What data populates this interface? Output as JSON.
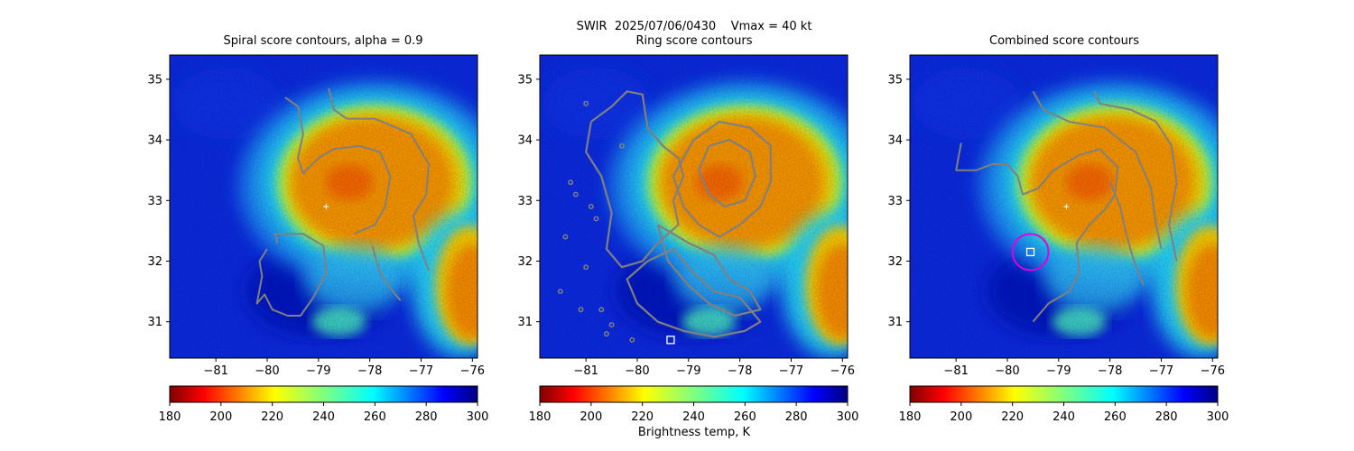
{
  "figure": {
    "suptitle": "SWIR  2025/07/06/0430    Vmax = 40 kt",
    "colorbar_label": "Brightness temp, K"
  },
  "chart_data": [
    {
      "type": "heatmap",
      "title": "Spiral score contours, alpha =  0.9",
      "xlim": [
        -81.9,
        -75.9
      ],
      "ylim": [
        30.4,
        35.4
      ],
      "xticks": [
        -81,
        -80,
        -79,
        -78,
        -77,
        -76
      ],
      "yticks": [
        31,
        32,
        33,
        34,
        35
      ],
      "colormap": "jet_r",
      "clim": [
        180,
        300
      ],
      "cbar_ticks": [
        180,
        200,
        220,
        240,
        260,
        280,
        300
      ],
      "center_marker": {
        "x": -78.85,
        "y": 32.9
      },
      "contours": [
        {
          "name": "",
          "points": [
            [
              -79.65,
              34.7
            ],
            [
              -79.4,
              34.55
            ],
            [
              -79.3,
              34.1
            ],
            [
              -79.4,
              33.7
            ],
            [
              -79.3,
              33.45
            ],
            [
              -79.0,
              33.7
            ],
            [
              -78.7,
              33.85
            ],
            [
              -78.2,
              33.9
            ],
            [
              -77.8,
              33.8
            ],
            [
              -77.6,
              33.4
            ],
            [
              -77.7,
              32.9
            ],
            [
              -77.9,
              32.6
            ],
            [
              -78.3,
              32.45
            ]
          ]
        },
        {
          "name": "",
          "points": [
            [
              -78.8,
              34.85
            ],
            [
              -78.7,
              34.5
            ],
            [
              -78.45,
              34.35
            ],
            [
              -77.9,
              34.35
            ],
            [
              -77.2,
              34.1
            ],
            [
              -76.85,
              33.6
            ],
            [
              -76.9,
              33.1
            ],
            [
              -77.15,
              32.75
            ],
            [
              -77.05,
              32.3
            ],
            [
              -76.85,
              31.85
            ]
          ]
        },
        {
          "name": "",
          "points": [
            [
              -79.8,
              32.3
            ],
            [
              -79.85,
              32.45
            ],
            [
              -79.3,
              32.45
            ],
            [
              -78.9,
              32.25
            ],
            [
              -78.85,
              31.8
            ],
            [
              -79.1,
              31.4
            ],
            [
              -79.35,
              31.1
            ],
            [
              -79.6,
              31.1
            ],
            [
              -79.9,
              31.2
            ],
            [
              -80.05,
              31.45
            ],
            [
              -80.2,
              31.3
            ],
            [
              -80.1,
              31.75
            ],
            [
              -80.15,
              32.0
            ],
            [
              -80.0,
              32.2
            ]
          ]
        },
        {
          "name": "",
          "points": [
            [
              -77.95,
              32.25
            ],
            [
              -77.8,
              31.8
            ],
            [
              -77.55,
              31.5
            ],
            [
              -77.4,
              31.35
            ]
          ]
        }
      ]
    },
    {
      "type": "heatmap",
      "title": "Ring score contours",
      "xlim": [
        -81.9,
        -75.9
      ],
      "ylim": [
        30.4,
        35.4
      ],
      "xticks": [
        -81,
        -80,
        -79,
        -78,
        -77,
        -76
      ],
      "yticks": [
        31,
        32,
        33,
        34,
        35
      ],
      "colormap": "jet_r",
      "clim": [
        180,
        300
      ],
      "cbar_ticks": [
        180,
        200,
        220,
        240,
        260,
        280,
        300
      ],
      "square_marker": {
        "x": -79.35,
        "y": 30.7
      },
      "contours": [
        {
          "name": "",
          "points": [
            [
              -80.9,
              34.3
            ],
            [
              -80.5,
              34.55
            ],
            [
              -80.2,
              34.8
            ],
            [
              -79.9,
              34.75
            ],
            [
              -79.8,
              34.2
            ],
            [
              -79.5,
              33.9
            ],
            [
              -79.2,
              33.7
            ],
            [
              -79.1,
              33.4
            ],
            [
              -79.3,
              33.0
            ],
            [
              -79.2,
              32.6
            ],
            [
              -79.6,
              32.3
            ],
            [
              -79.9,
              32.0
            ],
            [
              -80.3,
              31.9
            ],
            [
              -80.6,
              32.2
            ],
            [
              -80.5,
              32.8
            ],
            [
              -80.7,
              33.4
            ],
            [
              -81.0,
              33.8
            ],
            [
              -80.9,
              34.3
            ]
          ]
        },
        {
          "name": "",
          "points": [
            [
              -79.3,
              33.4
            ],
            [
              -78.9,
              34.0
            ],
            [
              -78.4,
              34.3
            ],
            [
              -77.8,
              34.2
            ],
            [
              -77.4,
              33.9
            ],
            [
              -77.4,
              33.3
            ],
            [
              -77.6,
              32.9
            ],
            [
              -78.0,
              32.6
            ],
            [
              -78.4,
              32.4
            ],
            [
              -78.8,
              32.6
            ],
            [
              -79.1,
              32.9
            ],
            [
              -79.3,
              33.4
            ]
          ]
        },
        {
          "name": "",
          "points": [
            [
              -78.6,
              33.9
            ],
            [
              -78.2,
              34.0
            ],
            [
              -77.8,
              33.8
            ],
            [
              -77.7,
              33.4
            ],
            [
              -77.9,
              33.0
            ],
            [
              -78.3,
              32.9
            ],
            [
              -78.6,
              33.1
            ],
            [
              -78.8,
              33.5
            ],
            [
              -78.6,
              33.9
            ]
          ]
        },
        {
          "name": "",
          "points": [
            [
              -79.8,
              32.0
            ],
            [
              -79.3,
              32.2
            ],
            [
              -78.9,
              31.8
            ],
            [
              -78.5,
              31.5
            ],
            [
              -78.0,
              31.4
            ],
            [
              -77.6,
              31.0
            ],
            [
              -77.9,
              30.85
            ],
            [
              -78.5,
              30.75
            ],
            [
              -79.1,
              30.85
            ],
            [
              -79.6,
              31.0
            ],
            [
              -80.0,
              31.3
            ],
            [
              -80.2,
              31.7
            ],
            [
              -79.8,
              32.0
            ]
          ]
        },
        {
          "name": "",
          "points": [
            [
              -79.6,
              32.6
            ],
            [
              -79.0,
              32.3
            ],
            [
              -78.5,
              32.1
            ],
            [
              -78.2,
              31.7
            ],
            [
              -77.8,
              31.5
            ],
            [
              -77.6,
              31.2
            ],
            [
              -78.1,
              31.1
            ],
            [
              -78.6,
              31.3
            ],
            [
              -79.0,
              31.6
            ],
            [
              -79.4,
              32.0
            ],
            [
              -79.6,
              32.6
            ]
          ]
        }
      ],
      "speckles": [
        [
          -81.3,
          33.3
        ],
        [
          -81.4,
          32.4
        ],
        [
          -81.0,
          31.9
        ],
        [
          -80.7,
          31.2
        ],
        [
          -80.5,
          30.95
        ],
        [
          -81.2,
          33.1
        ],
        [
          -80.8,
          32.7
        ],
        [
          -80.3,
          33.9
        ],
        [
          -81.5,
          31.5
        ],
        [
          -80.9,
          32.9
        ],
        [
          -81.1,
          31.2
        ],
        [
          -80.6,
          30.8
        ],
        [
          -81.0,
          34.6
        ],
        [
          -80.1,
          30.7
        ]
      ]
    },
    {
      "type": "heatmap",
      "title": "Combined score contours",
      "xlim": [
        -81.9,
        -75.9
      ],
      "ylim": [
        30.4,
        35.4
      ],
      "xticks": [
        -81,
        -80,
        -79,
        -78,
        -77,
        -76
      ],
      "yticks": [
        31,
        32,
        33,
        34,
        35
      ],
      "colormap": "jet_r",
      "clim": [
        180,
        300
      ],
      "cbar_ticks": [
        180,
        200,
        220,
        240,
        260,
        280,
        300
      ],
      "center_marker": {
        "x": -78.85,
        "y": 32.9
      },
      "ring_marker": {
        "x": -79.55,
        "y": 32.15
      },
      "square_marker": {
        "x": -79.55,
        "y": 32.15
      },
      "contours": [
        {
          "name": "",
          "points": [
            [
              -80.9,
              33.95
            ],
            [
              -81.0,
              33.5
            ],
            [
              -80.6,
              33.5
            ],
            [
              -80.3,
              33.6
            ],
            [
              -80.0,
              33.6
            ],
            [
              -79.8,
              33.4
            ],
            [
              -79.7,
              33.1
            ],
            [
              -79.4,
              33.2
            ],
            [
              -79.1,
              33.5
            ],
            [
              -78.6,
              33.75
            ],
            [
              -78.2,
              33.85
            ],
            [
              -77.85,
              33.55
            ],
            [
              -77.9,
              33.1
            ],
            [
              -78.1,
              32.85
            ],
            [
              -78.4,
              32.6
            ],
            [
              -78.65,
              32.3
            ],
            [
              -78.6,
              31.8
            ],
            [
              -78.8,
              31.5
            ],
            [
              -79.2,
              31.3
            ],
            [
              -79.5,
              31.0
            ]
          ]
        },
        {
          "name": "",
          "points": [
            [
              -79.5,
              34.8
            ],
            [
              -79.3,
              34.5
            ],
            [
              -78.8,
              34.3
            ],
            [
              -78.1,
              34.2
            ],
            [
              -77.5,
              33.8
            ],
            [
              -77.2,
              33.2
            ],
            [
              -77.1,
              32.6
            ],
            [
              -77.0,
              32.2
            ]
          ]
        },
        {
          "name": "",
          "points": [
            [
              -78.3,
              34.8
            ],
            [
              -78.2,
              34.6
            ],
            [
              -77.6,
              34.5
            ],
            [
              -77.1,
              34.3
            ],
            [
              -76.8,
              33.9
            ],
            [
              -76.7,
              33.3
            ],
            [
              -76.85,
              32.6
            ],
            [
              -76.7,
              32.0
            ]
          ]
        },
        {
          "name": "",
          "points": [
            [
              -78.0,
              33.3
            ],
            [
              -77.8,
              32.9
            ],
            [
              -77.7,
              32.5
            ],
            [
              -77.55,
              32.05
            ],
            [
              -77.35,
              31.6
            ]
          ]
        }
      ]
    }
  ]
}
